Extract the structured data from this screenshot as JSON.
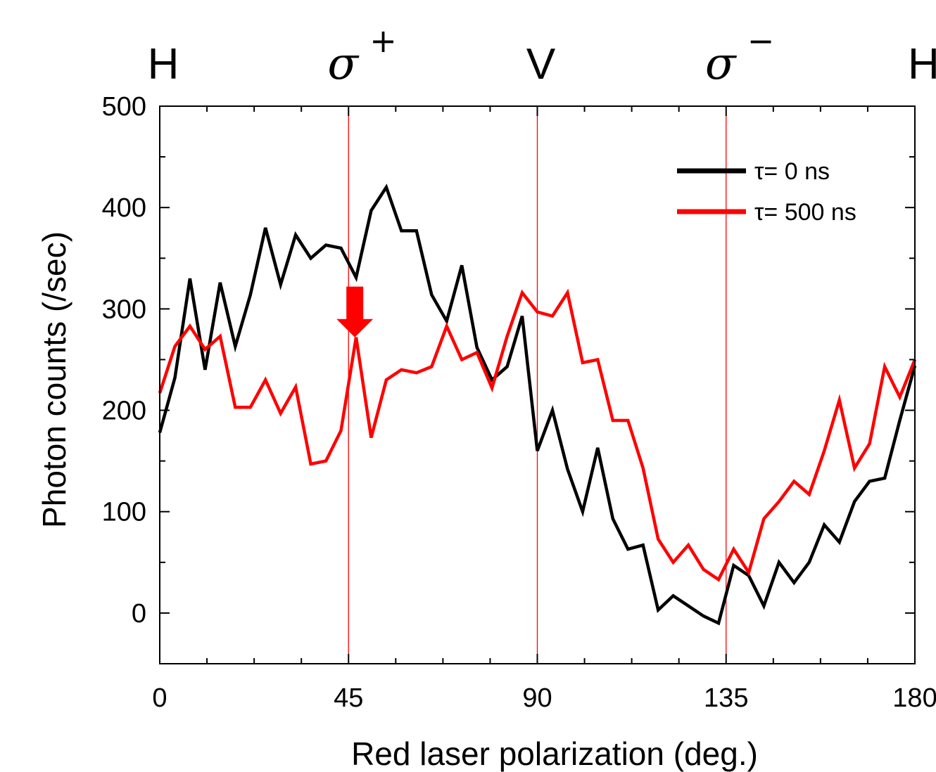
{
  "chart_data": {
    "type": "line",
    "xlabel": "Red laser polarization (deg.)",
    "ylabel": "Photon counts (/sec)",
    "xlim": [
      0,
      180
    ],
    "ylim": [
      -50,
      500
    ],
    "x_ticks": [
      0,
      45,
      90,
      135,
      180
    ],
    "x_tick_labels": [
      "0",
      "45",
      "90",
      "135",
      "180"
    ],
    "y_ticks": [
      0,
      100,
      200,
      300,
      400,
      500
    ],
    "y_tick_labels": [
      "0",
      "100",
      "200",
      "300",
      "400",
      "500"
    ],
    "grid": false,
    "legend_position": "top-right",
    "top_labels": [
      {
        "x": 0,
        "text": "H"
      },
      {
        "x": 45,
        "sigma": "σ",
        "sup": "+"
      },
      {
        "x": 90,
        "text": "V"
      },
      {
        "x": 135,
        "sigma": "σ",
        "sup": "−"
      },
      {
        "x": 180,
        "text": "H"
      }
    ],
    "reference_lines_x": [
      45,
      90,
      135
    ],
    "reference_line_color": "#ff0000",
    "arrow": {
      "x": 46.5,
      "y_top": 322,
      "y_tip": 272,
      "color": "#ff0000"
    },
    "series": [
      {
        "name": "τ= 0 ns",
        "color": "#000000",
        "x": [
          0,
          3.6,
          7.2,
          10.8,
          14.4,
          18,
          21.6,
          25.2,
          28.8,
          32.4,
          36,
          39.6,
          43.2,
          46.8,
          50.4,
          54,
          57.6,
          61.2,
          64.8,
          68.4,
          72,
          75.6,
          79.2,
          82.8,
          86.4,
          90,
          93.6,
          97.2,
          100.8,
          104.4,
          108,
          111.6,
          115.2,
          118.8,
          122.4,
          126,
          129.6,
          133.2,
          136.8,
          140.4,
          144,
          147.6,
          151.2,
          154.8,
          158.4,
          162,
          165.6,
          169.2,
          172.8,
          176.4,
          180
        ],
        "values": [
          178,
          232,
          330,
          240,
          326,
          263,
          314,
          380,
          324,
          373,
          350,
          363,
          360,
          331,
          397,
          420,
          377,
          377,
          314,
          288,
          343,
          262,
          230,
          243,
          293,
          160,
          200,
          142,
          100,
          163,
          93,
          63,
          67,
          3,
          17,
          7,
          -3,
          -10,
          47,
          37,
          7,
          50,
          30,
          50,
          87,
          70,
          110,
          130,
          133,
          190,
          244
        ]
      },
      {
        "name": "τ= 500 ns",
        "color": "#ff0000",
        "x": [
          0,
          3.6,
          7.2,
          10.8,
          14.4,
          18,
          21.6,
          25.2,
          28.8,
          32.4,
          36,
          39.6,
          43.2,
          46.8,
          50.4,
          54,
          57.6,
          61.2,
          64.8,
          68.4,
          72,
          75.6,
          79.2,
          82.8,
          86.4,
          90,
          93.6,
          97.2,
          100.8,
          104.4,
          108,
          111.6,
          115.2,
          118.8,
          122.4,
          126,
          129.6,
          133.2,
          136.8,
          140.4,
          144,
          147.6,
          151.2,
          154.8,
          158.4,
          162,
          165.6,
          169.2,
          172.8,
          176.4,
          180
        ],
        "values": [
          217,
          263,
          283,
          260,
          273,
          203,
          203,
          230,
          197,
          223,
          147,
          150,
          180,
          272,
          173,
          230,
          240,
          237,
          243,
          283,
          250,
          257,
          222,
          273,
          316,
          297,
          293,
          316,
          247,
          250,
          190,
          190,
          143,
          73,
          50,
          67,
          43,
          33,
          63,
          40,
          93,
          110,
          130,
          117,
          160,
          210,
          143,
          167,
          243,
          213,
          250
        ]
      }
    ]
  }
}
